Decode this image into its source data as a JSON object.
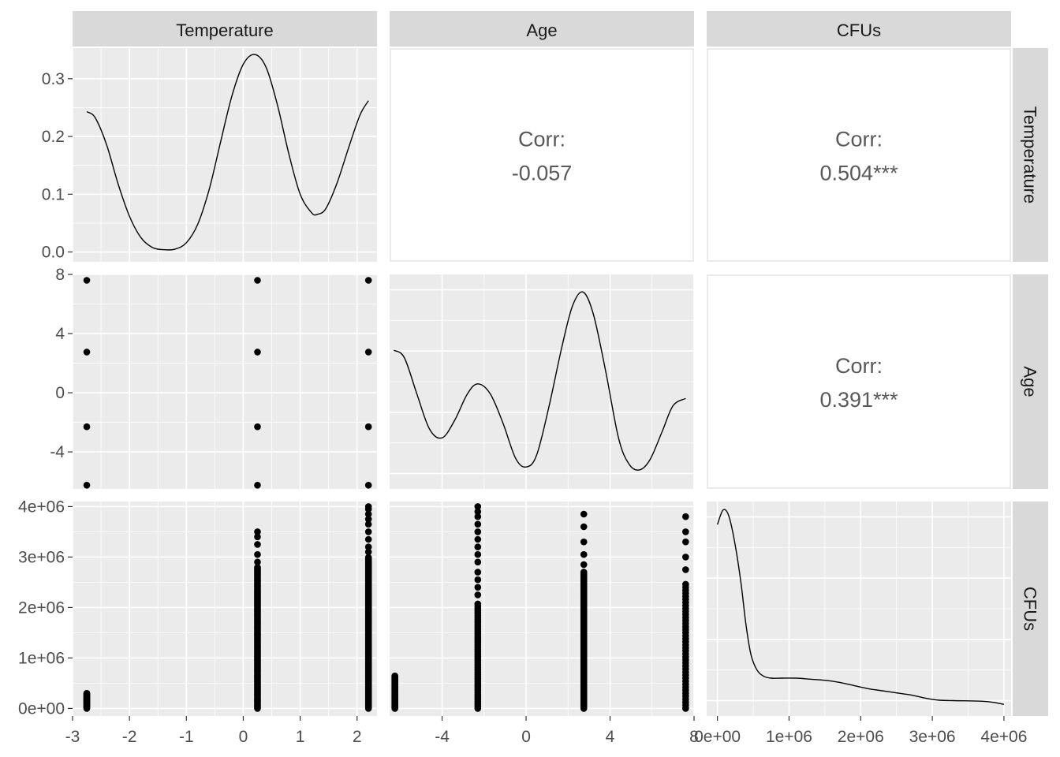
{
  "chart_data": {
    "type": "scatter",
    "layout": "pairs-matrix",
    "variables": [
      "Temperature",
      "Age",
      "CFUs"
    ],
    "axes": {
      "Temperature": {
        "range": [
          -3.0,
          2.35
        ],
        "ticks": [
          -3,
          -2,
          -1,
          0,
          1,
          2
        ],
        "tick_labels": [
          "-3",
          "-2",
          "-1",
          "0",
          "1",
          "2"
        ]
      },
      "Age": {
        "range": [
          -6.5,
          8.0
        ],
        "ticks": [
          -4,
          0,
          4,
          8
        ],
        "tick_labels": [
          "-4",
          "0",
          "4",
          "8"
        ]
      },
      "CFUs": {
        "range": [
          -150000,
          4100000
        ],
        "ticks": [
          0,
          1000000,
          2000000,
          3000000,
          4000000
        ],
        "tick_labels": [
          "0e+00",
          "1e+06",
          "2e+06",
          "3e+06",
          "4e+06"
        ]
      },
      "density_y": {
        "range": [
          -0.017,
          0.353
        ],
        "ticks": [
          0.0,
          0.1,
          0.2,
          0.3
        ],
        "tick_labels": [
          "0.0",
          "0.1",
          "0.2",
          "0.3"
        ]
      }
    },
    "correlations": [
      {
        "x": "Age",
        "y": "Temperature",
        "label": "Corr:",
        "value": "-0.057"
      },
      {
        "x": "CFUs",
        "y": "Temperature",
        "label": "Corr:",
        "value": "0.504***"
      },
      {
        "x": "CFUs",
        "y": "Age",
        "label": "Corr:",
        "value": "0.391***"
      }
    ],
    "density_temperature": [
      [
        -2.75,
        0.243
      ],
      [
        -2.6,
        0.232
      ],
      [
        -2.4,
        0.185
      ],
      [
        -2.2,
        0.118
      ],
      [
        -2.0,
        0.062
      ],
      [
        -1.8,
        0.025
      ],
      [
        -1.6,
        0.008
      ],
      [
        -1.4,
        0.004
      ],
      [
        -1.2,
        0.005
      ],
      [
        -1.0,
        0.016
      ],
      [
        -0.8,
        0.048
      ],
      [
        -0.6,
        0.108
      ],
      [
        -0.4,
        0.19
      ],
      [
        -0.2,
        0.27
      ],
      [
        0.0,
        0.325
      ],
      [
        0.2,
        0.342
      ],
      [
        0.4,
        0.32
      ],
      [
        0.6,
        0.255
      ],
      [
        0.8,
        0.17
      ],
      [
        1.0,
        0.1
      ],
      [
        1.2,
        0.068
      ],
      [
        1.3,
        0.065
      ],
      [
        1.45,
        0.075
      ],
      [
        1.65,
        0.12
      ],
      [
        1.85,
        0.18
      ],
      [
        2.05,
        0.237
      ],
      [
        2.2,
        0.262
      ]
    ],
    "density_age": [
      [
        -6.3,
        0.6
      ],
      [
        -5.8,
        0.55
      ],
      [
        -5.2,
        0.3
      ],
      [
        -4.6,
        0.06
      ],
      [
        -4.0,
        0.0
      ],
      [
        -3.4,
        0.12
      ],
      [
        -2.8,
        0.3
      ],
      [
        -2.3,
        0.37
      ],
      [
        -1.7,
        0.3
      ],
      [
        -1.1,
        0.1
      ],
      [
        -0.5,
        -0.14
      ],
      [
        0.0,
        -0.2
      ],
      [
        0.5,
        -0.12
      ],
      [
        1.1,
        0.22
      ],
      [
        1.7,
        0.62
      ],
      [
        2.2,
        0.9
      ],
      [
        2.7,
        1.0
      ],
      [
        3.2,
        0.85
      ],
      [
        3.8,
        0.45
      ],
      [
        4.4,
        0.0
      ],
      [
        4.9,
        -0.18
      ],
      [
        5.4,
        -0.22
      ],
      [
        5.9,
        -0.15
      ],
      [
        6.5,
        0.05
      ],
      [
        7.0,
        0.22
      ],
      [
        7.6,
        0.27
      ]
    ],
    "density_age_value_range": [
      -0.35,
      1.12
    ],
    "density_cfus": [
      [
        0,
        0.88
      ],
      [
        80000,
        0.95
      ],
      [
        160000,
        0.92
      ],
      [
        250000,
        0.78
      ],
      [
        330000,
        0.6
      ],
      [
        400000,
        0.4
      ],
      [
        470000,
        0.26
      ],
      [
        550000,
        0.19
      ],
      [
        640000,
        0.16
      ],
      [
        750000,
        0.15
      ],
      [
        900000,
        0.15
      ],
      [
        1100000,
        0.15
      ],
      [
        1300000,
        0.145
      ],
      [
        1500000,
        0.14
      ],
      [
        1700000,
        0.13
      ],
      [
        1900000,
        0.115
      ],
      [
        2100000,
        0.1
      ],
      [
        2300000,
        0.09
      ],
      [
        2500000,
        0.08
      ],
      [
        2700000,
        0.07
      ],
      [
        2900000,
        0.055
      ],
      [
        3100000,
        0.045
      ],
      [
        3300000,
        0.043
      ],
      [
        3500000,
        0.042
      ],
      [
        3700000,
        0.04
      ],
      [
        3850000,
        0.035
      ],
      [
        4000000,
        0.025
      ]
    ],
    "density_cfus_value_range": [
      -0.03,
      0.99
    ],
    "scatter_temp_age": {
      "x": [
        -2.75,
        -2.75,
        -2.75,
        -2.75,
        0.25,
        0.25,
        0.25,
        0.25,
        2.2,
        2.2,
        2.2,
        2.2
      ],
      "y": [
        7.6,
        2.75,
        -2.3,
        -6.25,
        7.6,
        2.75,
        -2.3,
        -6.25,
        7.6,
        2.75,
        -2.3,
        -6.25
      ]
    },
    "scatter_temp_cfus": [
      {
        "x": -2.75,
        "min": 0,
        "max": 300000,
        "step": 12000,
        "extra": []
      },
      {
        "x": 0.25,
        "min": 0,
        "max": 2800000,
        "step": 22000,
        "extra": [
          2900000,
          3050000,
          3250000,
          3400000,
          3500000
        ]
      },
      {
        "x": 2.2,
        "min": 0,
        "max": 3000000,
        "step": 22000,
        "extra": [
          3100000,
          3200000,
          3350000,
          3500000,
          3650000,
          3750000,
          3850000,
          3950000,
          4000000
        ]
      }
    ],
    "scatter_age_cfus": [
      {
        "x": -6.25,
        "min": 0,
        "max": 650000,
        "step": 15000,
        "extra": []
      },
      {
        "x": -2.3,
        "min": 0,
        "max": 2100000,
        "step": 45000,
        "extra": [
          2250000,
          2400000,
          2550000,
          2700000,
          2900000,
          3050000,
          3200000,
          3350000,
          3500000,
          3650000,
          3800000,
          3900000,
          4000000
        ]
      },
      {
        "x": 2.75,
        "min": 0,
        "max": 2700000,
        "step": 25000,
        "extra": [
          2850000,
          3050000,
          3300000,
          3600000,
          3850000
        ]
      },
      {
        "x": 7.6,
        "min": 0,
        "max": 2500000,
        "step": 60000,
        "extra": [
          2750000,
          3000000,
          3300000,
          3500000,
          3800000
        ]
      }
    ]
  }
}
